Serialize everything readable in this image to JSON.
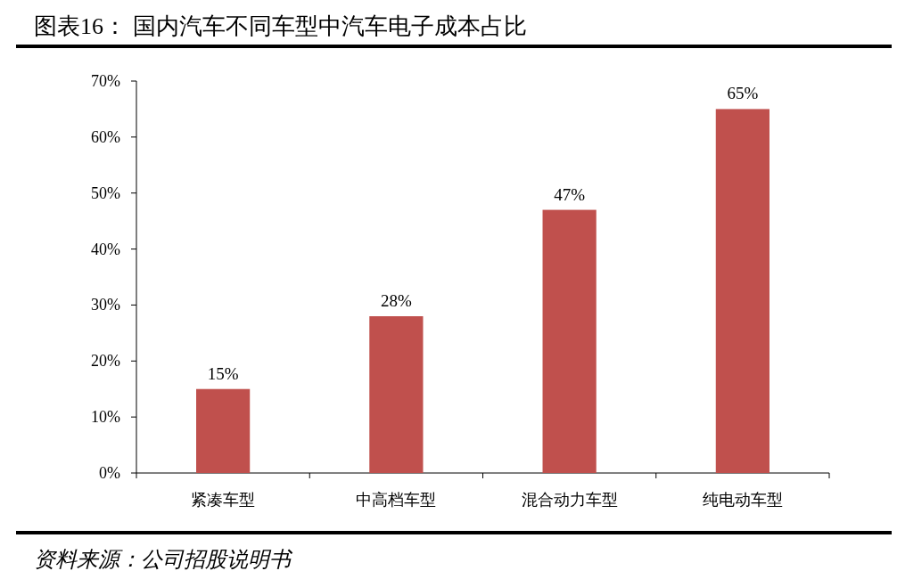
{
  "chart_data": {
    "type": "bar",
    "title": "图表16：  国内汽车不同车型中汽车电子成本占比",
    "categories": [
      "紧凑车型",
      "中高档车型",
      "混合动力车型",
      "纯电动车型"
    ],
    "values": [
      15,
      28,
      47,
      65
    ],
    "value_labels": [
      "15%",
      "28%",
      "47%",
      "65%"
    ],
    "color": "#c0504d",
    "ylim": [
      0,
      70
    ],
    "yticks": [
      {
        "value": 0,
        "label": "0%"
      },
      {
        "value": 10,
        "label": "10%"
      },
      {
        "value": 20,
        "label": "20%"
      },
      {
        "value": 30,
        "label": "30%"
      },
      {
        "value": 40,
        "label": "40%"
      },
      {
        "value": 50,
        "label": "50%"
      },
      {
        "value": 60,
        "label": "60%"
      },
      {
        "value": 70,
        "label": "70%"
      }
    ],
    "annotations": [
      "资料来源：公司招股说明书"
    ],
    "grid": false
  }
}
